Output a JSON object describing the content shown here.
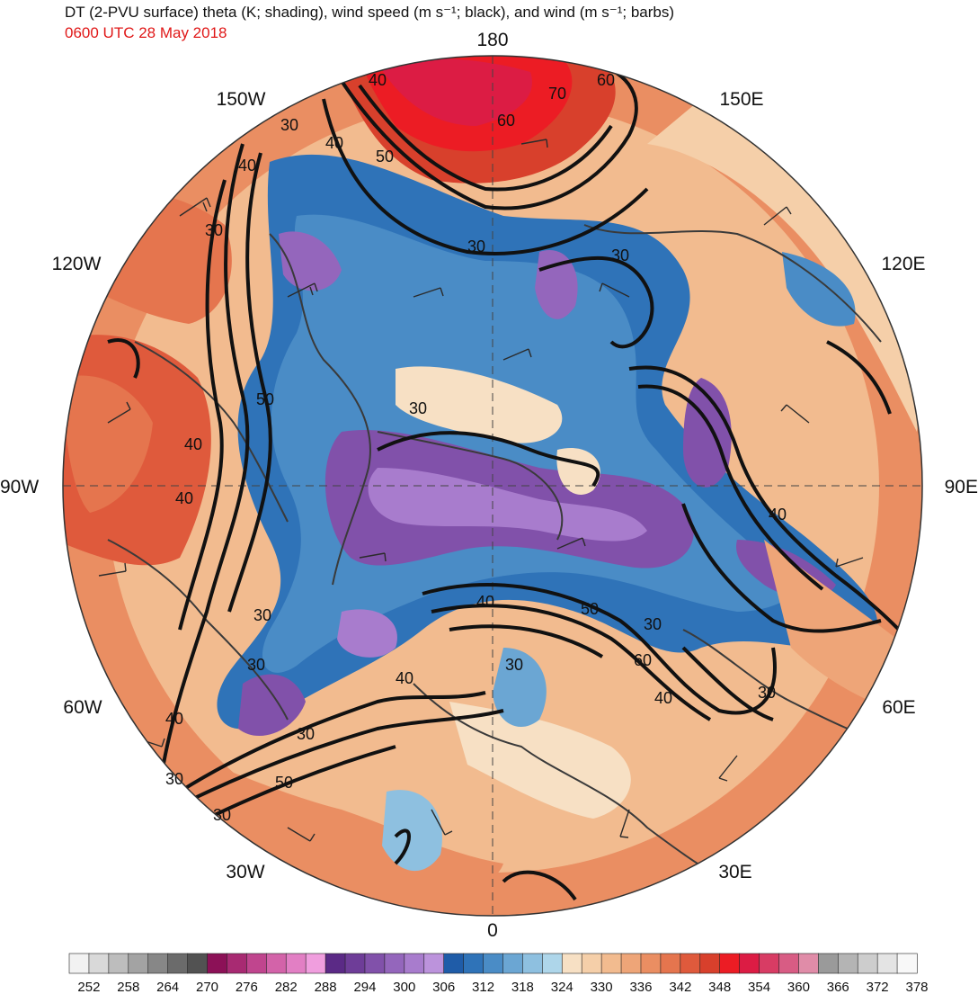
{
  "title": {
    "main": "DT (2-PVU surface) theta (K; shading), wind speed (m s⁻¹; black), and wind (m s⁻¹; barbs)",
    "valid_time": "0600 UTC 28 May 2018"
  },
  "longitude_labels": [
    {
      "text": "180",
      "angle_deg": 180
    },
    {
      "text": "150E",
      "angle_deg": 150
    },
    {
      "text": "120E",
      "angle_deg": 120
    },
    {
      "text": "90E",
      "angle_deg": 90
    },
    {
      "text": "60E",
      "angle_deg": 60
    },
    {
      "text": "30E",
      "angle_deg": 30
    },
    {
      "text": "0",
      "angle_deg": 0
    },
    {
      "text": "30W",
      "angle_deg": -30
    },
    {
      "text": "60W",
      "angle_deg": -60
    },
    {
      "text": "90W",
      "angle_deg": -90
    },
    {
      "text": "120W",
      "angle_deg": -120
    },
    {
      "text": "150W",
      "angle_deg": -150
    }
  ],
  "contour_labels": [
    "30",
    "40",
    "50",
    "60",
    "70"
  ],
  "colorbar": {
    "tick_labels": [
      "252",
      "258",
      "264",
      "270",
      "276",
      "282",
      "288",
      "294",
      "300",
      "306",
      "312",
      "318",
      "324",
      "330",
      "336",
      "342",
      "348",
      "354",
      "360",
      "366",
      "372",
      "378"
    ],
    "colors": [
      "#f2f2f2",
      "#d9d9d9",
      "#bdbdbd",
      "#a3a3a3",
      "#878787",
      "#6b6b6b",
      "#525252",
      "#8c1157",
      "#a82a72",
      "#c0458e",
      "#d363a9",
      "#e27fc4",
      "#f09ede",
      "#5b2a86",
      "#6e3d98",
      "#8151aa",
      "#9466bc",
      "#a87ccd",
      "#bc93dc",
      "#1f5ca8",
      "#2f73b8",
      "#4a8cc6",
      "#6ba6d3",
      "#8ec0e0",
      "#aed6ea",
      "#f7e0c4",
      "#f5cfa9",
      "#f2bb8f",
      "#eea578",
      "#ea8e62",
      "#e5754e",
      "#df5a3c",
      "#d8402c",
      "#ec1c24",
      "#dc1c44",
      "#d83c64",
      "#d85c84",
      "#e08ca8",
      "#9a9a9a",
      "#b4b4b4",
      "#cdcdcd",
      "#e4e4e4",
      "#f8f8f8"
    ]
  }
}
